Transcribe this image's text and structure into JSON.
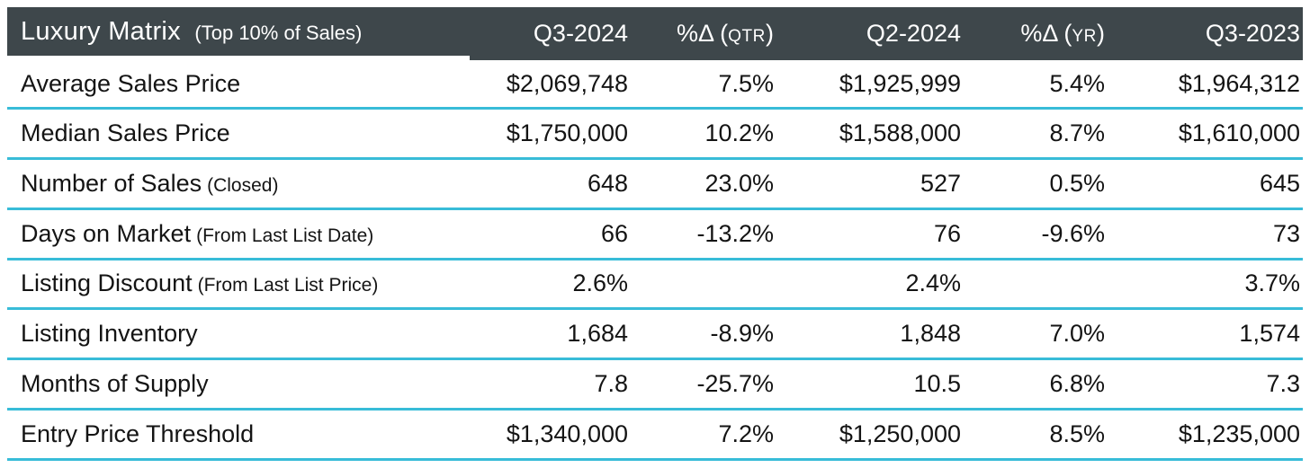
{
  "chart_data": {
    "type": "table",
    "title": "Luxury Matrix",
    "subtitle": "(Top 10% of Sales)",
    "column_labels": [
      "Q3-2024",
      "%Δ (QTR)",
      "Q2-2024",
      "%Δ (YR)",
      "Q3-2023"
    ],
    "columns": [
      {
        "pre": "Q3-2024",
        "caps": "",
        "post": ""
      },
      {
        "pre": "%Δ (",
        "caps": "QTR",
        "post": ")"
      },
      {
        "pre": "Q2-2024",
        "caps": "",
        "post": ""
      },
      {
        "pre": "%Δ (",
        "caps": "YR",
        "post": ")"
      },
      {
        "pre": "Q3-2023",
        "caps": "",
        "post": ""
      }
    ],
    "rows": [
      {
        "label": "Average Sales Price",
        "note": "",
        "values": [
          "$2,069,748",
          "7.5%",
          "$1,925,999",
          "5.4%",
          "$1,964,312"
        ]
      },
      {
        "label": "Median Sales Price",
        "note": "",
        "values": [
          "$1,750,000",
          "10.2%",
          "$1,588,000",
          "8.7%",
          "$1,610,000"
        ]
      },
      {
        "label": "Number of Sales",
        "note": "(Closed)",
        "values": [
          "648",
          "23.0%",
          "527",
          "0.5%",
          "645"
        ]
      },
      {
        "label": "Days on Market",
        "note": "(From Last List Date)",
        "values": [
          "66",
          "-13.2%",
          "76",
          "-9.6%",
          "73"
        ]
      },
      {
        "label": "Listing Discount",
        "note": "(From Last List Price)",
        "values": [
          "2.6%",
          "",
          "2.4%",
          "",
          "3.7%"
        ]
      },
      {
        "label": "Listing Inventory",
        "note": "",
        "values": [
          "1,684",
          "-8.9%",
          "1,848",
          "7.0%",
          "1,574"
        ]
      },
      {
        "label": "Months of Supply",
        "note": "",
        "values": [
          "7.8",
          "-25.7%",
          "10.5",
          "6.8%",
          "7.3"
        ]
      },
      {
        "label": "Entry Price Threshold",
        "note": "",
        "values": [
          "$1,340,000",
          "7.2%",
          "$1,250,000",
          "8.5%",
          "$1,235,000"
        ]
      }
    ]
  },
  "colors": {
    "header_bg": "#3E474B",
    "divider": "#38BCD8",
    "text": "#141414",
    "header_text": "#FFFFFF",
    "page_bg": "#FFFFFF"
  }
}
